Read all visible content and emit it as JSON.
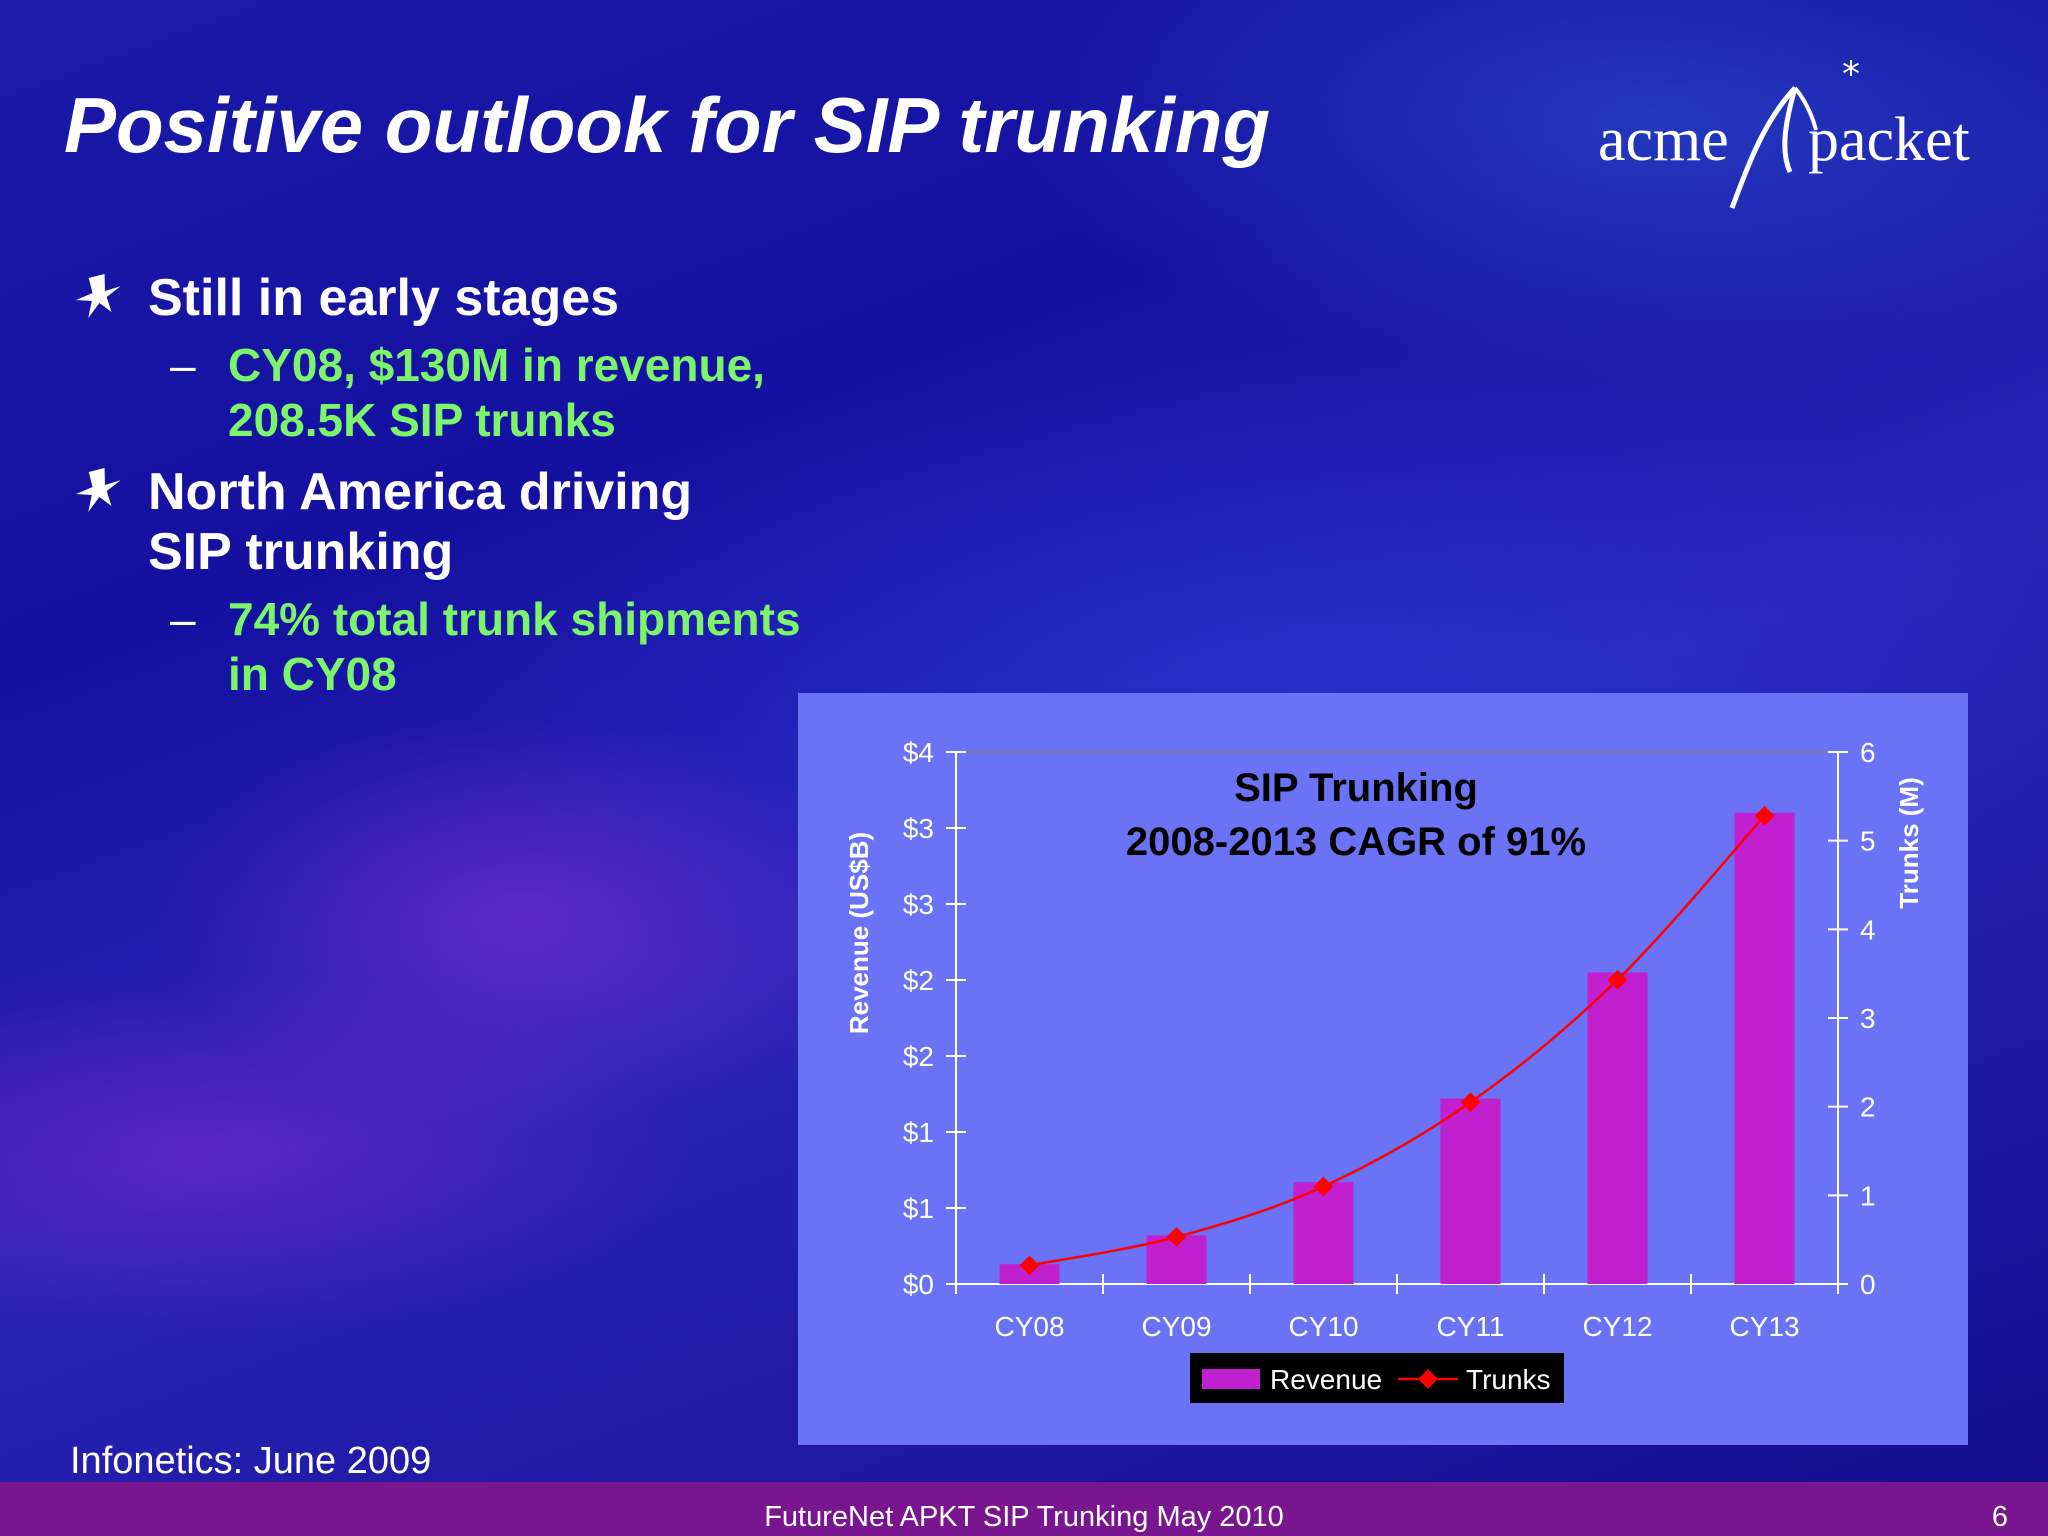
{
  "slide": {
    "title": "Positive outlook for SIP trunking",
    "logo_text_left": "acme",
    "logo_text_right": "packet",
    "bullets": [
      {
        "lines": [
          "Still in early stages"
        ],
        "sub": [
          {
            "lines": [
              "CY08, $130M in revenue,",
              "208.5K SIP trunks"
            ]
          }
        ]
      },
      {
        "lines": [
          "North America driving",
          "SIP trunking"
        ],
        "sub": [
          {
            "lines": [
              "74% total trunk shipments",
              "in CY08"
            ]
          }
        ]
      }
    ],
    "source": "Infonetics: June 2009",
    "footer": "FutureNet APKT SIP Trunking May 2010",
    "page_number": "6",
    "colors": {
      "title": "#ffffff",
      "sub_bullet": "#7cf56a",
      "chart_background": "#6a72f5",
      "bar": "#c020cf",
      "line": "#ff0000",
      "footer_bar": "#7a1590"
    }
  },
  "chart_data": {
    "type": "bar",
    "title_lines": [
      "SIP Trunking",
      "2008-2013 CAGR of 91%"
    ],
    "categories": [
      "CY08",
      "CY09",
      "CY10",
      "CY11",
      "CY12",
      "CY13"
    ],
    "series": [
      {
        "name": "Revenue",
        "type": "bar",
        "axis": "left",
        "values": [
          0.13,
          0.32,
          0.67,
          1.22,
          2.05,
          3.1
        ]
      },
      {
        "name": "Trunks",
        "type": "line",
        "axis": "right",
        "values": [
          0.21,
          0.53,
          1.1,
          2.05,
          3.43,
          5.28
        ]
      }
    ],
    "y_left": {
      "label": "Revenue (US$B)",
      "ylim": [
        0,
        3.5
      ],
      "tick_values": [
        0,
        0.5,
        1,
        1.5,
        2,
        2.5,
        3,
        3.5
      ],
      "tick_labels": [
        "$0",
        "$1",
        "$1",
        "$2",
        "$2",
        "$3",
        "$3",
        "$4"
      ]
    },
    "y_right": {
      "label": "Trunks (M)",
      "ylim": [
        0,
        6
      ],
      "tick_values": [
        0,
        1,
        2,
        3,
        4,
        5,
        6
      ],
      "tick_labels": [
        "0",
        "1",
        "2",
        "3",
        "4",
        "5",
        "6"
      ]
    },
    "grid": false,
    "legend": {
      "position": "bottom",
      "entries": [
        "Revenue",
        "Trunks"
      ]
    }
  }
}
